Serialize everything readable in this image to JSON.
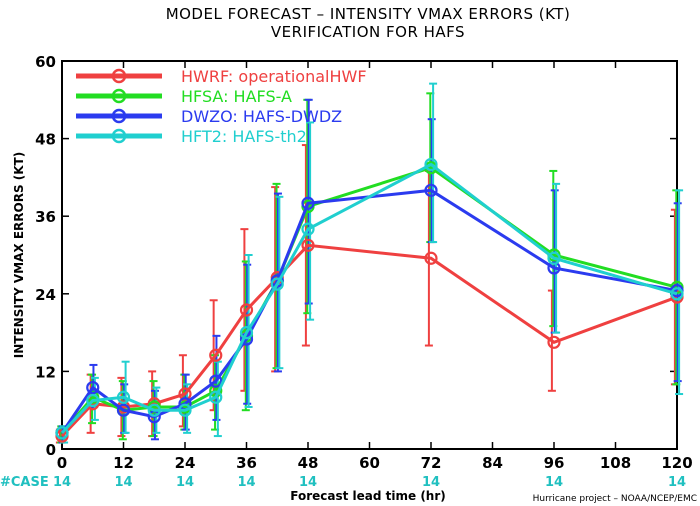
{
  "chart_data": {
    "type": "line",
    "title": "MODEL FORECAST – INTENSITY VMAX ERRORS (KT)",
    "subtitle": "VERIFICATION FOR HAFS",
    "xlabel": "Forecast lead time (hr)",
    "ylabel": "INTENSITY VMAX ERRORS (KT)",
    "credit": "Hurricane project – NOAA/NCEP/EMC",
    "case_label": "#CASE",
    "xlim": [
      0,
      120
    ],
    "ylim": [
      0,
      60
    ],
    "x_ticks": [
      0,
      12,
      24,
      36,
      48,
      60,
      72,
      84,
      96,
      108,
      120
    ],
    "y_ticks": [
      0,
      12,
      24,
      36,
      48,
      60
    ],
    "case_x": [
      0,
      12,
      24,
      36,
      48,
      72,
      96,
      120
    ],
    "case_counts": [
      "14",
      "14",
      "14",
      "14",
      "14",
      "14",
      "14",
      "14"
    ],
    "legend_position": "top-left",
    "grid": false,
    "x": [
      0,
      6,
      12,
      18,
      24,
      30,
      36,
      42,
      48,
      72,
      96,
      120
    ],
    "series": [
      {
        "name": "HWRF: operationalHWF",
        "color": "#ef4040",
        "values": [
          2,
          7,
          6.5,
          7,
          8.5,
          14.5,
          21.5,
          26.5,
          31.5,
          29.5,
          16.5,
          23.5
        ],
        "err_low": [
          1,
          2.5,
          2,
          2,
          3.5,
          6,
          9,
          12,
          16,
          16,
          9,
          10
        ],
        "err_high": [
          3,
          11.5,
          11,
          12,
          14.5,
          23,
          34,
          40.5,
          47,
          43,
          24.5,
          37
        ]
      },
      {
        "name": "HFSA: HAFS-A",
        "color": "#22dd22",
        "values": [
          2.5,
          8,
          6,
          6.5,
          6.5,
          9,
          17.5,
          26,
          37.5,
          43.5,
          30,
          25
        ],
        "err_low": [
          1,
          4,
          1.5,
          2,
          3,
          3,
          6,
          12.5,
          21,
          32,
          19,
          10
        ],
        "err_high": [
          3.5,
          11.5,
          10.5,
          10.5,
          11.5,
          14.5,
          29,
          41,
          54,
          55,
          43,
          40
        ]
      },
      {
        "name": "DWZO: HAFS-DWDZ",
        "color": "#2b3bef",
        "values": [
          2.5,
          9.5,
          6,
          5,
          7,
          10.5,
          17,
          26,
          38,
          40,
          28,
          24.5
        ],
        "err_low": [
          1,
          6.5,
          2.5,
          1.5,
          3,
          4.5,
          7,
          12,
          22.5,
          32,
          18,
          10.5
        ],
        "err_high": [
          3.5,
          13,
          10,
          9,
          11.5,
          17.5,
          28.5,
          39.5,
          54,
          51,
          40,
          38
        ]
      },
      {
        "name": "HFT2: HAFS-th2",
        "color": "#20cfcf",
        "values": [
          2.5,
          7.5,
          8,
          6,
          6,
          8,
          18,
          25.5,
          34,
          44,
          29.5,
          24
        ],
        "err_low": [
          1,
          4.5,
          2.5,
          2.5,
          2.5,
          2,
          6.5,
          12.5,
          20,
          32,
          18,
          8.5
        ],
        "err_high": [
          3.5,
          11,
          13.5,
          9.5,
          10,
          13.5,
          30,
          39,
          50.5,
          56.5,
          41,
          40
        ]
      }
    ]
  }
}
